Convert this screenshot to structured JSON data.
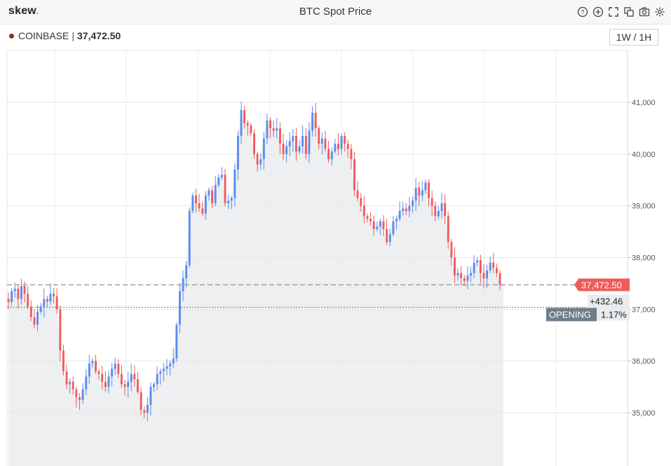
{
  "app": {
    "logo": "skew",
    "logo_dot": ".",
    "title": "BTC Spot Price"
  },
  "toolbar": {
    "icons": [
      "help-icon",
      "add-icon",
      "fullscreen-icon",
      "duplicate-icon",
      "camera-icon",
      "settings-icon"
    ]
  },
  "legend": {
    "exchange": "COINBASE",
    "separator": "|",
    "price": "37,472.50"
  },
  "timeframe": {
    "label": "1W / 1H"
  },
  "colors": {
    "up": "#5b8def",
    "down": "#ef5b5b",
    "area": "#e7e9ec",
    "last_price": "#ef5b5b",
    "opening_label_bg": "#6e7d8a"
  },
  "chart_data": {
    "type": "candlestick",
    "y_ticks": [
      "35,000",
      "36,000",
      "37,000",
      "38,000",
      "39,000",
      "40,000",
      "41,000"
    ],
    "y_tick_values": [
      35000,
      36000,
      37000,
      38000,
      39000,
      40000,
      41000
    ],
    "ylim": [
      34400,
      41700
    ],
    "grid": true,
    "last_price": 37472.5,
    "last_price_label": "37,472.50",
    "opening_price": 37040,
    "opening_label": "OPENING",
    "change_abs": "+432.46",
    "change_pct": "1.17%",
    "closes": [
      37140,
      37350,
      37400,
      37200,
      37450,
      37300,
      37050,
      36850,
      36700,
      36950,
      37050,
      37200,
      37150,
      37300,
      37250,
      37000,
      36200,
      35800,
      35550,
      35600,
      35450,
      35300,
      35250,
      35450,
      35700,
      35950,
      36000,
      35800,
      35750,
      35600,
      35500,
      35700,
      35850,
      35950,
      35750,
      35550,
      35500,
      35600,
      35750,
      35650,
      35400,
      35050,
      35000,
      35150,
      35500,
      35550,
      35750,
      35800,
      35850,
      35900,
      35950,
      36050,
      36700,
      37350,
      37600,
      37850,
      38900,
      39200,
      39050,
      38950,
      38850,
      39200,
      39300,
      39050,
      39400,
      39550,
      39600,
      39050,
      39100,
      39150,
      39700,
      40350,
      40850,
      40600,
      40550,
      40400,
      40000,
      39800,
      39900,
      40300,
      40650,
      40500,
      40450,
      40500,
      40200,
      40000,
      40150,
      40250,
      40350,
      40050,
      40150,
      40350,
      40000,
      40450,
      40800,
      40500,
      40200,
      40300,
      40100,
      39900,
      40050,
      40200,
      40100,
      40350,
      40200,
      40100,
      39900,
      39300,
      39150,
      39000,
      38800,
      38750,
      38700,
      38550,
      38600,
      38700,
      38550,
      38300,
      38450,
      38700,
      38750,
      38900,
      38950,
      38900,
      39000,
      39100,
      39350,
      39200,
      39300,
      39450,
      39150,
      39000,
      38800,
      38900,
      39050,
      38800,
      38300,
      38000,
      37650,
      37700,
      37600,
      37550,
      37650,
      37700,
      37900,
      37950,
      37700,
      37600,
      37750,
      37900,
      37800,
      37700,
      37472.5
    ]
  }
}
